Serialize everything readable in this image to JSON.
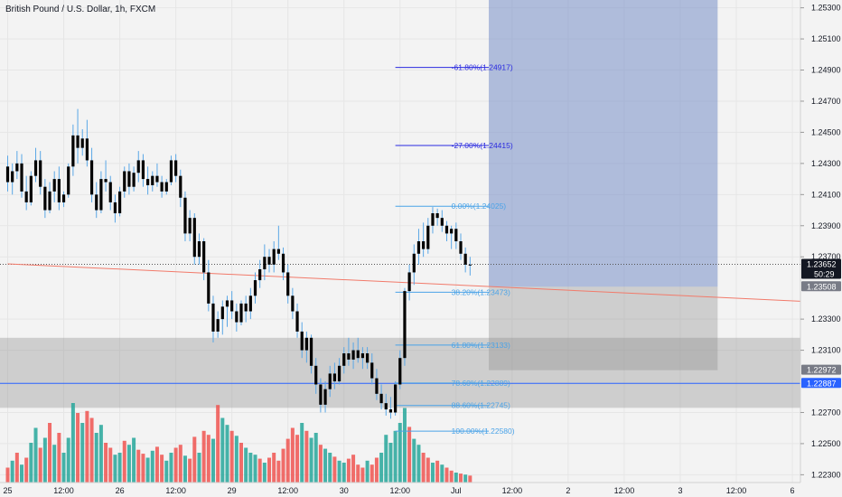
{
  "chart_data": {
    "type": "candlestick",
    "title": "British Pound / U.S. Dollar, 1h, FXCM",
    "price_axis": {
      "range": [
        1.2225,
        1.2535
      ],
      "ticks": [
        "1.22300",
        "1.22500",
        "1.22700",
        "1.23100",
        "1.23300",
        "1.23700",
        "1.23900",
        "1.24100",
        "1.24300",
        "1.24500",
        "1.24700",
        "1.24900",
        "1.25100",
        "1.25300"
      ],
      "tick_values": [
        1.223,
        1.225,
        1.227,
        1.231,
        1.233,
        1.237,
        1.239,
        1.241,
        1.243,
        1.245,
        1.247,
        1.249,
        1.251,
        1.253
      ]
    },
    "time_axis": {
      "labels": [
        "25",
        "12:00",
        "26",
        "12:00",
        "29",
        "12:00",
        "30",
        "12:00",
        "Jul",
        "12:00",
        "2",
        "12:00",
        "3",
        "12:00",
        "6"
      ],
      "label_slots": [
        0,
        12,
        24,
        36,
        48,
        60,
        72,
        84,
        96,
        108,
        120,
        132,
        144,
        156,
        168
      ]
    },
    "price_badges": [
      {
        "label": "1.23652",
        "sub": "50:29",
        "value": 1.23652,
        "color": "#131722"
      },
      {
        "label": "1.23508",
        "value": 1.23508,
        "color": "#787b86"
      },
      {
        "label": "1.22972",
        "value": 1.22972,
        "color": "#787b86"
      },
      {
        "label": "1.22887",
        "value": 1.22887,
        "color": "#2962ff"
      }
    ],
    "fib_levels": [
      {
        "label": "-61.80%(1.24917)",
        "value": 1.24917,
        "color": "#2a2ae0"
      },
      {
        "label": "-27.00%(1.24415)",
        "value": 1.24415,
        "color": "#2a2ae0"
      },
      {
        "label": "0.00%(1.24025)",
        "value": 1.24025,
        "color": "#4aa3e8"
      },
      {
        "label": "38.20%(1.23473)",
        "value": 1.23473,
        "color": "#4aa3e8"
      },
      {
        "label": "61.80%(1.23133)",
        "value": 1.23133,
        "color": "#4aa3e8"
      },
      {
        "label": "78.60%(1.22889)",
        "value": 1.22889,
        "color": "#4aa3e8"
      },
      {
        "label": "88.60%(1.22745)",
        "value": 1.22745,
        "color": "#4aa3e8"
      },
      {
        "label": "100.00%(1.22580)",
        "value": 1.2258,
        "color": "#4aa3e8"
      }
    ],
    "zones": [
      {
        "name": "demand-zone",
        "from": 1.2273,
        "to": 1.2318,
        "color": "#8a8a8a",
        "opacity": 0.35
      },
      {
        "name": "position-target",
        "from": 1.23508,
        "to": 1.2535,
        "color": "#6b86c4",
        "opacity": 0.5
      },
      {
        "name": "position-stop",
        "from": 1.22972,
        "to": 1.23508,
        "color": "#8a8a8a",
        "opacity": 0.35
      }
    ],
    "horizontal_lines": [
      {
        "name": "current-price-line",
        "value": 1.23652,
        "color": "#555555",
        "dashed": true
      },
      {
        "name": "level-line-122887",
        "value": 1.22887,
        "color": "#2962ff",
        "dashed": false
      }
    ],
    "trend_line": {
      "from": {
        "slot": 0,
        "price": 1.23655
      },
      "to": {
        "slot": 175,
        "price": 1.23415
      },
      "color": "#f27a6a"
    },
    "colors": {
      "up": "#000000",
      "down": "#000000",
      "wick": "#5aa7e6",
      "vol_up": "#26a69a",
      "vol_down": "#ef5350"
    },
    "candles": [
      {
        "o": 1.2428,
        "h": 1.2435,
        "l": 1.2412,
        "c": 1.2418
      },
      {
        "o": 1.2418,
        "h": 1.243,
        "l": 1.241,
        "c": 1.2425
      },
      {
        "o": 1.2425,
        "h": 1.2438,
        "l": 1.242,
        "c": 1.243
      },
      {
        "o": 1.243,
        "h": 1.2436,
        "l": 1.2408,
        "c": 1.2412
      },
      {
        "o": 1.2412,
        "h": 1.2422,
        "l": 1.24,
        "c": 1.2405
      },
      {
        "o": 1.2405,
        "h": 1.2425,
        "l": 1.2403,
        "c": 1.2422
      },
      {
        "o": 1.2422,
        "h": 1.244,
        "l": 1.2418,
        "c": 1.2432
      },
      {
        "o": 1.2432,
        "h": 1.2438,
        "l": 1.241,
        "c": 1.2415
      },
      {
        "o": 1.2415,
        "h": 1.242,
        "l": 1.2395,
        "c": 1.24
      },
      {
        "o": 1.24,
        "h": 1.2418,
        "l": 1.2398,
        "c": 1.2412
      },
      {
        "o": 1.2412,
        "h": 1.2425,
        "l": 1.2405,
        "c": 1.242
      },
      {
        "o": 1.242,
        "h": 1.2428,
        "l": 1.24,
        "c": 1.2405
      },
      {
        "o": 1.2405,
        "h": 1.2412,
        "l": 1.2402,
        "c": 1.241
      },
      {
        "o": 1.241,
        "h": 1.243,
        "l": 1.2408,
        "c": 1.2428
      },
      {
        "o": 1.2428,
        "h": 1.2455,
        "l": 1.2422,
        "c": 1.2448
      },
      {
        "o": 1.2448,
        "h": 1.2465,
        "l": 1.243,
        "c": 1.244
      },
      {
        "o": 1.244,
        "h": 1.2452,
        "l": 1.2435,
        "c": 1.2446
      },
      {
        "o": 1.2446,
        "h": 1.2458,
        "l": 1.2428,
        "c": 1.2432
      },
      {
        "o": 1.2432,
        "h": 1.244,
        "l": 1.2405,
        "c": 1.241
      },
      {
        "o": 1.241,
        "h": 1.2418,
        "l": 1.2395,
        "c": 1.24
      },
      {
        "o": 1.24,
        "h": 1.2425,
        "l": 1.2398,
        "c": 1.242
      },
      {
        "o": 1.242,
        "h": 1.2432,
        "l": 1.2412,
        "c": 1.2418
      },
      {
        "o": 1.2418,
        "h": 1.2422,
        "l": 1.24,
        "c": 1.2405
      },
      {
        "o": 1.2405,
        "h": 1.241,
        "l": 1.2392,
        "c": 1.2398
      },
      {
        "o": 1.2398,
        "h": 1.2415,
        "l": 1.2396,
        "c": 1.2412
      },
      {
        "o": 1.2412,
        "h": 1.2428,
        "l": 1.2408,
        "c": 1.2425
      },
      {
        "o": 1.2425,
        "h": 1.243,
        "l": 1.241,
        "c": 1.2415
      },
      {
        "o": 1.2415,
        "h": 1.2428,
        "l": 1.2412,
        "c": 1.2424
      },
      {
        "o": 1.2424,
        "h": 1.2438,
        "l": 1.2418,
        "c": 1.2432
      },
      {
        "o": 1.2432,
        "h": 1.2436,
        "l": 1.2415,
        "c": 1.242
      },
      {
        "o": 1.242,
        "h": 1.2428,
        "l": 1.241,
        "c": 1.2416
      },
      {
        "o": 1.2416,
        "h": 1.2425,
        "l": 1.2412,
        "c": 1.2422
      },
      {
        "o": 1.2422,
        "h": 1.243,
        "l": 1.2415,
        "c": 1.2418
      },
      {
        "o": 1.2418,
        "h": 1.2422,
        "l": 1.2408,
        "c": 1.2412
      },
      {
        "o": 1.2412,
        "h": 1.242,
        "l": 1.241,
        "c": 1.2418
      },
      {
        "o": 1.2418,
        "h": 1.2435,
        "l": 1.2416,
        "c": 1.2432
      },
      {
        "o": 1.2432,
        "h": 1.2436,
        "l": 1.2418,
        "c": 1.2422
      },
      {
        "o": 1.2422,
        "h": 1.2426,
        "l": 1.2402,
        "c": 1.2408
      },
      {
        "o": 1.2408,
        "h": 1.2412,
        "l": 1.238,
        "c": 1.2385
      },
      {
        "o": 1.2385,
        "h": 1.24,
        "l": 1.238,
        "c": 1.2395
      },
      {
        "o": 1.2395,
        "h": 1.2398,
        "l": 1.2365,
        "c": 1.237
      },
      {
        "o": 1.237,
        "h": 1.2385,
        "l": 1.2365,
        "c": 1.238
      },
      {
        "o": 1.238,
        "h": 1.2382,
        "l": 1.2355,
        "c": 1.236
      },
      {
        "o": 1.236,
        "h": 1.2368,
        "l": 1.2335,
        "c": 1.234
      },
      {
        "o": 1.234,
        "h": 1.2345,
        "l": 1.2315,
        "c": 1.2322
      },
      {
        "o": 1.2322,
        "h": 1.2335,
        "l": 1.2318,
        "c": 1.233
      },
      {
        "o": 1.233,
        "h": 1.2342,
        "l": 1.232,
        "c": 1.2338
      },
      {
        "o": 1.2338,
        "h": 1.2345,
        "l": 1.2325,
        "c": 1.2342
      },
      {
        "o": 1.2342,
        "h": 1.2348,
        "l": 1.233,
        "c": 1.2335
      },
      {
        "o": 1.2335,
        "h": 1.234,
        "l": 1.2322,
        "c": 1.2328
      },
      {
        "o": 1.2328,
        "h": 1.2342,
        "l": 1.2326,
        "c": 1.234
      },
      {
        "o": 1.234,
        "h": 1.2345,
        "l": 1.2328,
        "c": 1.2335
      },
      {
        "o": 1.2335,
        "h": 1.235,
        "l": 1.233,
        "c": 1.2345
      },
      {
        "o": 1.2345,
        "h": 1.236,
        "l": 1.234,
        "c": 1.2355
      },
      {
        "o": 1.2355,
        "h": 1.2368,
        "l": 1.235,
        "c": 1.2362
      },
      {
        "o": 1.2362,
        "h": 1.2378,
        "l": 1.2355,
        "c": 1.237
      },
      {
        "o": 1.237,
        "h": 1.2375,
        "l": 1.236,
        "c": 1.2365
      },
      {
        "o": 1.2365,
        "h": 1.238,
        "l": 1.236,
        "c": 1.2375
      },
      {
        "o": 1.2375,
        "h": 1.239,
        "l": 1.2368,
        "c": 1.2372
      },
      {
        "o": 1.2372,
        "h": 1.2376,
        "l": 1.2355,
        "c": 1.236
      },
      {
        "o": 1.236,
        "h": 1.2365,
        "l": 1.234,
        "c": 1.2345
      },
      {
        "o": 1.2345,
        "h": 1.235,
        "l": 1.233,
        "c": 1.2335
      },
      {
        "o": 1.2335,
        "h": 1.234,
        "l": 1.2318,
        "c": 1.2322
      },
      {
        "o": 1.2322,
        "h": 1.2328,
        "l": 1.2305,
        "c": 1.231
      },
      {
        "o": 1.231,
        "h": 1.2322,
        "l": 1.2302,
        "c": 1.2318
      },
      {
        "o": 1.2318,
        "h": 1.232,
        "l": 1.2295,
        "c": 1.23
      },
      {
        "o": 1.23,
        "h": 1.2305,
        "l": 1.2282,
        "c": 1.2288
      },
      {
        "o": 1.2288,
        "h": 1.2292,
        "l": 1.227,
        "c": 1.2275
      },
      {
        "o": 1.2275,
        "h": 1.229,
        "l": 1.227,
        "c": 1.2285
      },
      {
        "o": 1.2285,
        "h": 1.23,
        "l": 1.228,
        "c": 1.2295
      },
      {
        "o": 1.2295,
        "h": 1.2302,
        "l": 1.2285,
        "c": 1.229
      },
      {
        "o": 1.229,
        "h": 1.2305,
        "l": 1.2288,
        "c": 1.23
      },
      {
        "o": 1.23,
        "h": 1.2312,
        "l": 1.2295,
        "c": 1.2308
      },
      {
        "o": 1.2308,
        "h": 1.2318,
        "l": 1.23,
        "c": 1.2304
      },
      {
        "o": 1.2304,
        "h": 1.2315,
        "l": 1.2298,
        "c": 1.231
      },
      {
        "o": 1.231,
        "h": 1.2318,
        "l": 1.2302,
        "c": 1.2305
      },
      {
        "o": 1.2305,
        "h": 1.2312,
        "l": 1.2298,
        "c": 1.2308
      },
      {
        "o": 1.2308,
        "h": 1.2312,
        "l": 1.2298,
        "c": 1.2302
      },
      {
        "o": 1.2302,
        "h": 1.2308,
        "l": 1.2288,
        "c": 1.2292
      },
      {
        "o": 1.2292,
        "h": 1.2298,
        "l": 1.2278,
        "c": 1.2282
      },
      {
        "o": 1.2282,
        "h": 1.2288,
        "l": 1.2272,
        "c": 1.2276
      },
      {
        "o": 1.2276,
        "h": 1.2282,
        "l": 1.2268,
        "c": 1.2272
      },
      {
        "o": 1.2272,
        "h": 1.228,
        "l": 1.2266,
        "c": 1.227
      },
      {
        "o": 1.227,
        "h": 1.229,
        "l": 1.2268,
        "c": 1.2288
      },
      {
        "o": 1.2288,
        "h": 1.231,
        "l": 1.2285,
        "c": 1.2305
      },
      {
        "o": 1.2305,
        "h": 1.235,
        "l": 1.23,
        "c": 1.2348
      },
      {
        "o": 1.2348,
        "h": 1.2365,
        "l": 1.2342,
        "c": 1.236
      },
      {
        "o": 1.236,
        "h": 1.2378,
        "l": 1.2352,
        "c": 1.2372
      },
      {
        "o": 1.2372,
        "h": 1.2388,
        "l": 1.2365,
        "c": 1.238
      },
      {
        "o": 1.238,
        "h": 1.2392,
        "l": 1.237,
        "c": 1.2375
      },
      {
        "o": 1.2375,
        "h": 1.2395,
        "l": 1.2372,
        "c": 1.239
      },
      {
        "o": 1.239,
        "h": 1.2402,
        "l": 1.2385,
        "c": 1.2398
      },
      {
        "o": 1.2398,
        "h": 1.2401,
        "l": 1.239,
        "c": 1.2395
      },
      {
        "o": 1.2395,
        "h": 1.24,
        "l": 1.2386,
        "c": 1.239
      },
      {
        "o": 1.239,
        "h": 1.2393,
        "l": 1.238,
        "c": 1.2385
      },
      {
        "o": 1.2385,
        "h": 1.239,
        "l": 1.2375,
        "c": 1.2388
      },
      {
        "o": 1.2388,
        "h": 1.2392,
        "l": 1.2375,
        "c": 1.238
      },
      {
        "o": 1.238,
        "h": 1.2385,
        "l": 1.2368,
        "c": 1.2372
      },
      {
        "o": 1.2372,
        "h": 1.2376,
        "l": 1.236,
        "c": 1.2365
      },
      {
        "o": 1.2365,
        "h": 1.237,
        "l": 1.2358,
        "c": 1.2365
      }
    ],
    "volume": {
      "max": 100,
      "values": [
        15,
        22,
        30,
        18,
        25,
        40,
        55,
        35,
        45,
        60,
        38,
        50,
        30,
        45,
        80,
        70,
        60,
        72,
        65,
        50,
        58,
        40,
        35,
        28,
        30,
        42,
        38,
        45,
        33,
        29,
        25,
        32,
        36,
        28,
        22,
        30,
        35,
        38,
        27,
        24,
        46,
        30,
        52,
        48,
        44,
        78,
        65,
        58,
        52,
        47,
        40,
        35,
        30,
        28,
        24,
        20,
        25,
        30,
        22,
        34,
        44,
        55,
        48,
        60,
        52,
        45,
        50,
        38,
        34,
        30,
        26,
        22,
        20,
        24,
        28,
        18,
        15,
        22,
        18,
        25,
        30,
        48,
        40,
        52,
        60,
        75,
        56,
        44,
        38,
        30,
        25,
        20,
        22,
        18,
        15,
        12,
        10,
        9,
        8,
        7
      ],
      "up": [
        false,
        true,
        false,
        true,
        false,
        true,
        true,
        false,
        true,
        false,
        true,
        false,
        true,
        true,
        true,
        false,
        true,
        false,
        false,
        true,
        true,
        false,
        false,
        true,
        true,
        false,
        true,
        true,
        false,
        false,
        true,
        true,
        false,
        false,
        true,
        true,
        false,
        false,
        true,
        false,
        false,
        true,
        false,
        false,
        true,
        false,
        true,
        true,
        false,
        true,
        false,
        true,
        true,
        true,
        false,
        true,
        false,
        false,
        false,
        false,
        false,
        false,
        false,
        true,
        false,
        true,
        true,
        false,
        true,
        true,
        false,
        true,
        true,
        false,
        false,
        false,
        false,
        true,
        false,
        false,
        true,
        true,
        true,
        true,
        true,
        true,
        false,
        true,
        true,
        false,
        false,
        true,
        false,
        true,
        false,
        false,
        true,
        false,
        true,
        false
      ]
    }
  }
}
